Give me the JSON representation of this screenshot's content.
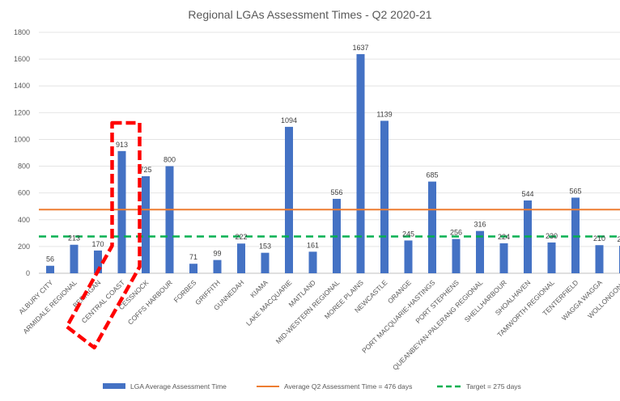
{
  "chart_data": {
    "type": "bar",
    "title": "Regional LGAs Assessment Times - Q2 2020-21",
    "categories": [
      "ALBURY CITY",
      "ARMIDALE REGIONAL",
      "BERRIGAN",
      "CENTRAL COAST",
      "CESSNOCK",
      "COFFS HARBOUR",
      "FORBES",
      "GRIFFITH",
      "GUNNEDAH",
      "KIAMA",
      "LAKE MACQUARIE",
      "MAITLAND",
      "MID-WESTERN REGIONAL",
      "MOREE PLAINS",
      "NEWCASTLE",
      "ORANGE",
      "PORT MACQUARIE-HASTINGS",
      "PORT STEPHENS",
      "QUEANBEYAN-PALERANG REGIONAL",
      "SHELLHARBOUR",
      "SHOALHAVEN",
      "TAMWORTH REGIONAL",
      "TENTERFIELD",
      "WAGGA WAGGA",
      "WOLLONGONG"
    ],
    "series": [
      {
        "name": "LGA Average Assessment Time",
        "values": [
          56,
          213,
          170,
          913,
          725,
          800,
          71,
          99,
          222,
          153,
          1094,
          161,
          556,
          1637,
          1139,
          245,
          685,
          256,
          316,
          224,
          544,
          230,
          565,
          210,
          205
        ],
        "data_labels": [
          "56",
          "213",
          "170",
          "913",
          "725",
          "800",
          "71",
          "99",
          "222",
          "153",
          "1094",
          "161",
          "556",
          "1637",
          "1139",
          "245",
          "685",
          "256",
          "316",
          "224",
          "544",
          "230",
          "565",
          "210",
          "205"
        ],
        "color": "#4472C4"
      }
    ],
    "reference_lines": [
      {
        "name": "Average Q2 Assessment Time = 476 days",
        "value": 476,
        "color": "#ED7D31",
        "style": "solid"
      },
      {
        "name": "Target = 275 days",
        "value": 275,
        "color": "#00B050",
        "style": "dashed"
      }
    ],
    "ylim": [
      0,
      1800
    ],
    "yticks": [
      0,
      200,
      400,
      600,
      800,
      1000,
      1200,
      1400,
      1600,
      1800
    ],
    "grid": true,
    "legend_position": "bottom",
    "highlight": {
      "category": "CENTRAL COAST",
      "color": "#FF0000",
      "style": "dashed-box"
    }
  }
}
